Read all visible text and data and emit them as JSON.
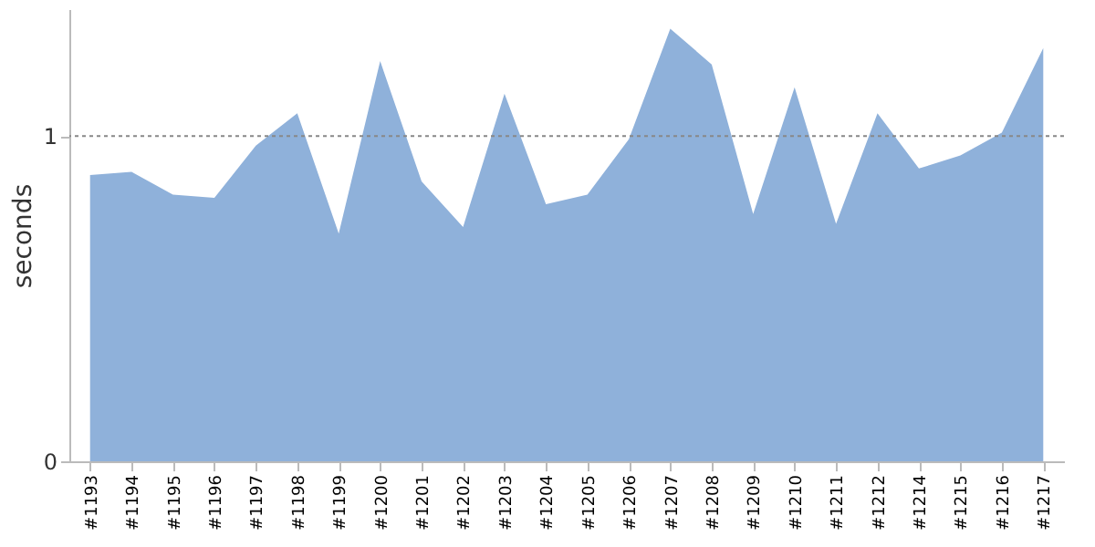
{
  "chart_data": {
    "type": "area",
    "ylabel": "seconds",
    "categories": [
      "#1193",
      "#1194",
      "#1195",
      "#1196",
      "#1197",
      "#1198",
      "#1199",
      "#1200",
      "#1201",
      "#1202",
      "#1203",
      "#1204",
      "#1205",
      "#1206",
      "#1207",
      "#1208",
      "#1209",
      "#1210",
      "#1211",
      "#1212",
      "#1214",
      "#1215",
      "#1216",
      "#1217"
    ],
    "series": [
      {
        "color": "#8fb1da",
        "values": [
          0.88,
          0.89,
          0.82,
          0.81,
          0.97,
          1.07,
          0.7,
          1.23,
          0.86,
          0.72,
          1.13,
          0.79,
          0.82,
          0.99,
          1.33,
          1.22,
          0.76,
          1.15,
          0.73,
          1.07,
          0.9,
          0.94,
          1.01,
          1.27
        ]
      }
    ],
    "ylim": [
      0,
      1.39
    ],
    "yticks": [
      0,
      1
    ],
    "grid": false,
    "ref_lines": [
      {
        "axis": "y",
        "value": 1,
        "color": "#888888",
        "line_style": "dashed"
      }
    ]
  }
}
